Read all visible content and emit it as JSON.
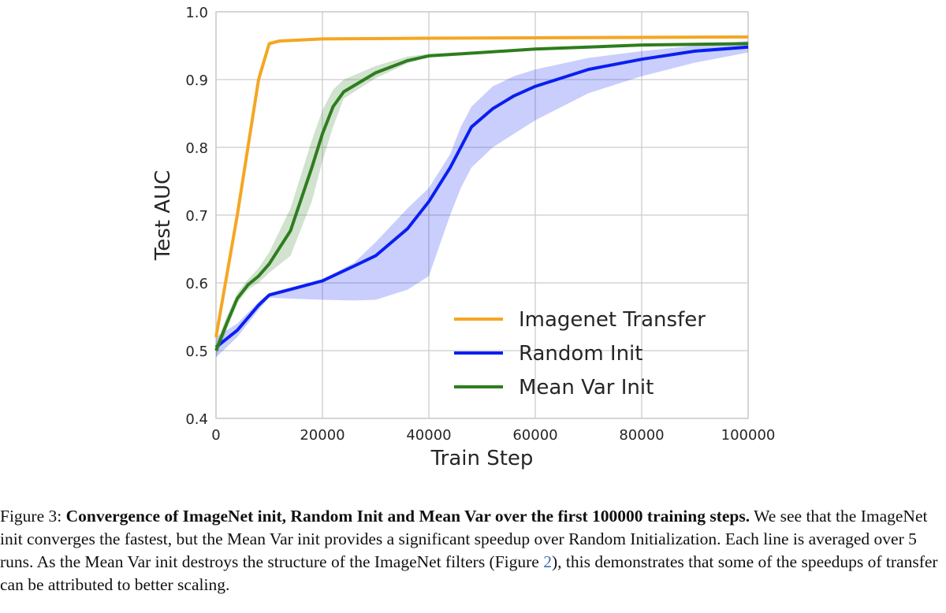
{
  "chart_data": {
    "type": "line",
    "xlabel": "Train Step",
    "ylabel": "Test AUC",
    "xlim": [
      0,
      100000
    ],
    "ylim": [
      0.4,
      1.0
    ],
    "xticks": [
      0,
      20000,
      40000,
      60000,
      80000,
      100000
    ],
    "xtick_labels": [
      "0",
      "20000",
      "40000",
      "60000",
      "80000",
      "100000"
    ],
    "yticks": [
      0.4,
      0.5,
      0.6,
      0.7,
      0.8,
      0.9,
      1.0
    ],
    "ytick_labels": [
      "0.4",
      "0.5",
      "0.6",
      "0.7",
      "0.8",
      "0.9",
      "1.0"
    ],
    "grid": true,
    "legend_position": "lower-right",
    "series": [
      {
        "name": "Imagenet Transfer",
        "color": "#f5a623",
        "x": [
          0,
          4000,
          6000,
          8000,
          10000,
          12000,
          20000,
          40000,
          100000
        ],
        "y": [
          0.52,
          0.7,
          0.8,
          0.9,
          0.953,
          0.957,
          0.96,
          0.961,
          0.963
        ],
        "band_lower": [
          0.51,
          0.69,
          0.79,
          0.89,
          0.95,
          0.955,
          0.958,
          0.96,
          0.962
        ],
        "band_upper": [
          0.53,
          0.71,
          0.81,
          0.91,
          0.957,
          0.959,
          0.962,
          0.963,
          0.964
        ]
      },
      {
        "name": "Random Init",
        "color": "#0a1ff0",
        "x": [
          0,
          4000,
          8000,
          10000,
          20000,
          26000,
          30000,
          36000,
          40000,
          44000,
          46000,
          48000,
          52000,
          56000,
          60000,
          70000,
          80000,
          90000,
          100000
        ],
        "y": [
          0.505,
          0.53,
          0.567,
          0.582,
          0.603,
          0.625,
          0.64,
          0.68,
          0.72,
          0.77,
          0.8,
          0.83,
          0.857,
          0.876,
          0.89,
          0.915,
          0.93,
          0.942,
          0.948
        ],
        "band_lower": [
          0.49,
          0.52,
          0.56,
          0.578,
          0.575,
          0.574,
          0.575,
          0.59,
          0.61,
          0.7,
          0.74,
          0.77,
          0.8,
          0.82,
          0.84,
          0.88,
          0.905,
          0.925,
          0.94
        ],
        "band_upper": [
          0.52,
          0.54,
          0.572,
          0.585,
          0.605,
          0.63,
          0.66,
          0.71,
          0.74,
          0.79,
          0.83,
          0.86,
          0.89,
          0.905,
          0.915,
          0.932,
          0.942,
          0.95,
          0.957
        ]
      },
      {
        "name": "Mean Var Init",
        "color": "#2e7d1e",
        "x": [
          0,
          2000,
          4000,
          6000,
          8000,
          10000,
          14000,
          18000,
          20000,
          22000,
          24000,
          30000,
          36000,
          40000,
          50000,
          60000,
          80000,
          100000
        ],
        "y": [
          0.5,
          0.54,
          0.577,
          0.597,
          0.61,
          0.628,
          0.677,
          0.77,
          0.82,
          0.86,
          0.882,
          0.91,
          0.928,
          0.935,
          0.94,
          0.945,
          0.951,
          0.953
        ],
        "band_lower": [
          0.49,
          0.53,
          0.57,
          0.59,
          0.6,
          0.615,
          0.64,
          0.72,
          0.78,
          0.83,
          0.872,
          0.902,
          0.924,
          0.933,
          0.939,
          0.944,
          0.95,
          0.952
        ],
        "band_upper": [
          0.51,
          0.55,
          0.585,
          0.605,
          0.622,
          0.645,
          0.71,
          0.81,
          0.855,
          0.885,
          0.9,
          0.92,
          0.934,
          0.938,
          0.942,
          0.947,
          0.952,
          0.954
        ]
      }
    ]
  },
  "caption": {
    "label": "Figure 3: ",
    "title": "Convergence of ImageNet init, Random Init and Mean Var over the first 100000 training steps.",
    "body_1": " We see that the ImageNet init converges the fastest, but the Mean Var init provides a significant speedup over Random Initialization. Each line is averaged over 5 runs. As the Mean Var init destroys the structure of the ImageNet filters (Figure ",
    "ref": "2",
    "body_2": "), this demonstrates that some of the speedups of transfer can be attributed to better scaling."
  }
}
